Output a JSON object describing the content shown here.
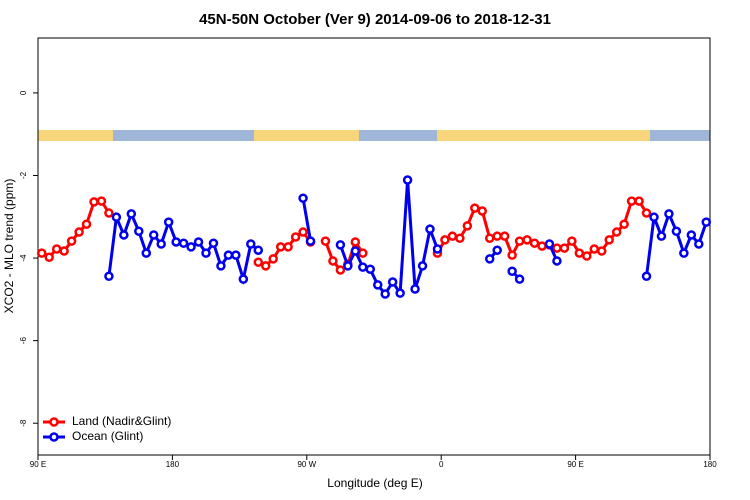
{
  "chart_data": {
    "type": "line",
    "title": "45N-50N October (Ver 9)   2014-09-06 to 2018-12-31",
    "x_label": "Longitude (deg E)",
    "y_label": "XCO2 - MLO trend (ppm)",
    "x": [
      92.5,
      97.5,
      102.5,
      107.5,
      112.5,
      117.5,
      122.5,
      127.5,
      132.5,
      137.5,
      142.5,
      147.5,
      152.5,
      157.5,
      162.5,
      167.5,
      172.5,
      177.5,
      182.5,
      187.5,
      192.5,
      197.5,
      202.5,
      207.5,
      212.5,
      217.5,
      222.5,
      227.5,
      232.5,
      237.5,
      242.5,
      247.5,
      252.5,
      257.5,
      262.5,
      267.5,
      272.5,
      277.5,
      282.5,
      287.5,
      292.5,
      297.5,
      302.5,
      307.5,
      312.5,
      317.5,
      322.5,
      327.5,
      332.5,
      337.5,
      342.5,
      347.5,
      352.5,
      357.5,
      362.5,
      367.5,
      372.5,
      377.5,
      382.5,
      387.5,
      392.5,
      397.5,
      402.5,
      407.5,
      412.5,
      417.5,
      422.5,
      427.5,
      432.5,
      437.5,
      442.5,
      447.5,
      452.5,
      457.5,
      462.5,
      467.5,
      472.5,
      477.5,
      482.5,
      487.5,
      492.5,
      497.5,
      502.5,
      507.5,
      512.5,
      517.5,
      522.5,
      527.5,
      532.5,
      537.5
    ],
    "series": [
      {
        "name": "Land (Nadir&Glint)",
        "color": "#ff0000",
        "values": [
          -3.88,
          -3.98,
          -3.78,
          -3.83,
          -3.59,
          -3.37,
          -3.18,
          -2.64,
          -2.62,
          -2.91,
          null,
          null,
          null,
          null,
          null,
          null,
          null,
          null,
          null,
          null,
          null,
          null,
          null,
          null,
          null,
          null,
          null,
          null,
          null,
          -4.1,
          -4.19,
          -4.02,
          -3.73,
          -3.73,
          -3.49,
          -3.37,
          -3.61,
          null,
          -3.59,
          -4.07,
          -4.29,
          -4.15,
          -3.61,
          -3.88,
          null,
          null,
          null,
          null,
          null,
          null,
          null,
          null,
          null,
          -3.88,
          -3.56,
          -3.47,
          -3.52,
          -3.22,
          -2.79,
          -2.86,
          -3.52,
          -3.47,
          -3.47,
          -3.93,
          -3.59,
          -3.56,
          -3.64,
          -3.71,
          -3.68,
          -3.76,
          -3.76,
          -3.59,
          -3.88,
          -3.95,
          -3.78,
          -3.83,
          -3.56,
          -3.37,
          -3.18,
          -2.62,
          -2.62,
          -2.91,
          null,
          null,
          null,
          null,
          null,
          null,
          null,
          null
        ]
      },
      {
        "name": "Ocean (Glint)",
        "color": "#0000ee",
        "values": [
          null,
          null,
          null,
          null,
          null,
          null,
          null,
          null,
          null,
          -4.44,
          -3.01,
          -3.44,
          -2.93,
          -3.35,
          -3.88,
          -3.44,
          -3.66,
          -3.13,
          -3.61,
          -3.64,
          -3.73,
          -3.61,
          -3.88,
          -3.64,
          -4.19,
          -3.93,
          -3.93,
          -4.51,
          -3.66,
          -3.81,
          null,
          null,
          null,
          null,
          null,
          -2.55,
          -3.59,
          null,
          null,
          null,
          -3.68,
          -4.19,
          -3.83,
          -4.22,
          -4.27,
          -4.65,
          -4.87,
          -4.58,
          -4.85,
          -2.11,
          -4.75,
          -4.19,
          -3.3,
          -3.78,
          null,
          null,
          null,
          null,
          null,
          null,
          -4.02,
          -3.81,
          null,
          -4.32,
          -4.51,
          null,
          null,
          null,
          -3.66,
          -4.07,
          null,
          null,
          null,
          null,
          null,
          null,
          null,
          null,
          null,
          null,
          null,
          -4.44,
          -3.01,
          -3.47,
          -2.93,
          -3.35,
          -3.88,
          -3.44,
          -3.66,
          -3.13
        ]
      }
    ],
    "xlim": [
      90,
      540
    ],
    "xticks": [
      {
        "value": 90,
        "label": "90 E"
      },
      180,
      {
        "value": 270,
        "label": "90 W"
      },
      {
        "value": 360,
        "label": "0"
      },
      {
        "value": 450,
        "label": "90 E"
      },
      {
        "value": 540,
        "label": "180"
      }
    ],
    "ylim": [
      -8.77,
      1.33
    ],
    "yticks": [
      0,
      -2,
      -4,
      -6,
      -8
    ],
    "legend": "lower left"
  }
}
